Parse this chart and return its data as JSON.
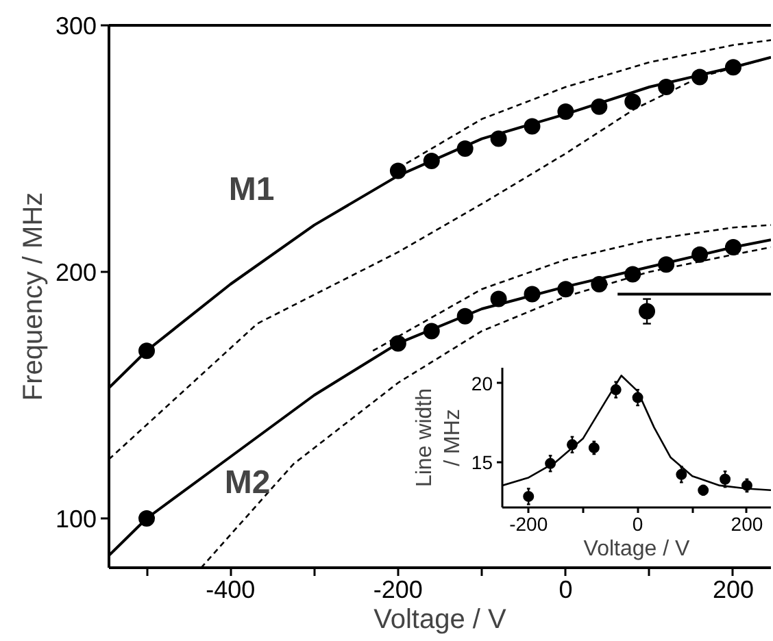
{
  "chart_data": [
    {
      "type": "scatter",
      "xlabel": "Voltage / V",
      "ylabel": "Frequency / MHz",
      "xlim": [
        -545,
        245
      ],
      "ylim": [
        80,
        300
      ],
      "xticks": [
        {
          "value": -500,
          "label": null
        },
        -400,
        {
          "value": -300,
          "label": null
        },
        -200,
        {
          "value": -100,
          "label": null
        },
        0,
        {
          "value": 100,
          "label": null
        },
        200
      ],
      "yticks": [
        100,
        200,
        300
      ],
      "annotations": [
        "M1",
        "M2"
      ],
      "series": [
        {
          "marker": "circle",
          "color": "#000000",
          "x": [
            -500,
            -200,
            -160,
            -120,
            -80,
            -40,
            0,
            40,
            80,
            120,
            160,
            200
          ],
          "values": [
            168,
            241,
            245,
            250,
            254,
            259,
            265,
            267,
            269,
            275,
            279,
            283
          ]
        },
        {
          "type": "line",
          "line_style": "solid",
          "color": "#000000",
          "x": [
            -545,
            -500,
            -400,
            -300,
            -200,
            -100,
            0,
            100,
            200,
            245
          ],
          "values": [
            153,
            168,
            195,
            219,
            239,
            254,
            264,
            275,
            283,
            287
          ]
        },
        {
          "type": "line",
          "line_style": "dashed",
          "color": "#000000",
          "x": [
            -200,
            -100,
            0,
            100,
            200,
            245
          ],
          "values": [
            242,
            262,
            275,
            285,
            292,
            294
          ]
        },
        {
          "type": "line",
          "line_style": "dashed",
          "color": "#000000",
          "x": [
            -545,
            -368,
            -200,
            -93,
            0,
            82,
            160,
            245
          ],
          "values": [
            124,
            179,
            208,
            229,
            248,
            266,
            279,
            287
          ]
        },
        {
          "marker": "circle",
          "color": "#000000",
          "x": [
            -500,
            -200,
            -160,
            -120,
            -80,
            -40,
            0,
            40,
            80,
            120,
            160,
            200
          ],
          "values": [
            100,
            171,
            176,
            182,
            189,
            191,
            193,
            195,
            199,
            203,
            207,
            210
          ]
        },
        {
          "type": "line",
          "line_style": "solid",
          "color": "#000000",
          "x": [
            -545,
            -500,
            -400,
            -300,
            -200,
            -100,
            0,
            100,
            200,
            245
          ],
          "values": [
            85,
            100,
            125,
            150,
            171,
            185,
            194,
            202,
            210,
            213
          ]
        },
        {
          "type": "line",
          "line_style": "dashed",
          "color": "#000000",
          "x": [
            -230,
            -100,
            0,
            100,
            200,
            245
          ],
          "values": [
            168,
            193,
            205,
            213,
            218,
            219
          ]
        },
        {
          "type": "line",
          "line_style": "dashed",
          "color": "#000000",
          "x": [
            -435,
            -325,
            -200,
            -100,
            0,
            100,
            200,
            245
          ],
          "values": [
            80,
            122,
            155,
            176,
            190,
            200,
            207,
            210
          ]
        },
        {
          "marker": "circle",
          "color": "#000000",
          "x": [
            97
          ],
          "values": [
            184
          ],
          "errors": [
            5
          ]
        },
        {
          "type": "line",
          "line_style": "solid",
          "color": "#000000",
          "x": [
            62,
            245
          ],
          "values": [
            191,
            191
          ]
        }
      ]
    },
    {
      "type": "scatter",
      "xlabel": "Voltage / V",
      "ylabel": "Line width / MHz",
      "xlim": [
        -248,
        244
      ],
      "ylim": [
        12.1,
        21
      ],
      "xticks": [
        -200,
        {
          "value": -100,
          "label": null
        },
        0,
        {
          "value": 100,
          "label": null
        },
        200
      ],
      "yticks": [
        15,
        20
      ],
      "series": [
        {
          "marker": "circle",
          "color": "#000000",
          "x": [
            -200,
            -160,
            -120,
            -80,
            -40,
            0,
            80,
            120,
            160,
            200
          ],
          "values": [
            12.8,
            14.9,
            16.1,
            15.9,
            19.6,
            19.1,
            14.2,
            13.2,
            13.9,
            13.5
          ],
          "errors": [
            0.5,
            0.5,
            0.5,
            0.4,
            0.5,
            0.5,
            0.5,
            0.3,
            0.5,
            0.4
          ]
        },
        {
          "type": "line",
          "line_style": "solid",
          "color": "#000000",
          "x": [
            -248,
            -200,
            -150,
            -100,
            -60,
            -30,
            0,
            30,
            60,
            100,
            150,
            200,
            244
          ],
          "values": [
            13.5,
            14.0,
            15.0,
            16.5,
            18.8,
            20.5,
            19.5,
            17.2,
            15.3,
            14.1,
            13.5,
            13.3,
            13.2
          ]
        }
      ]
    }
  ]
}
